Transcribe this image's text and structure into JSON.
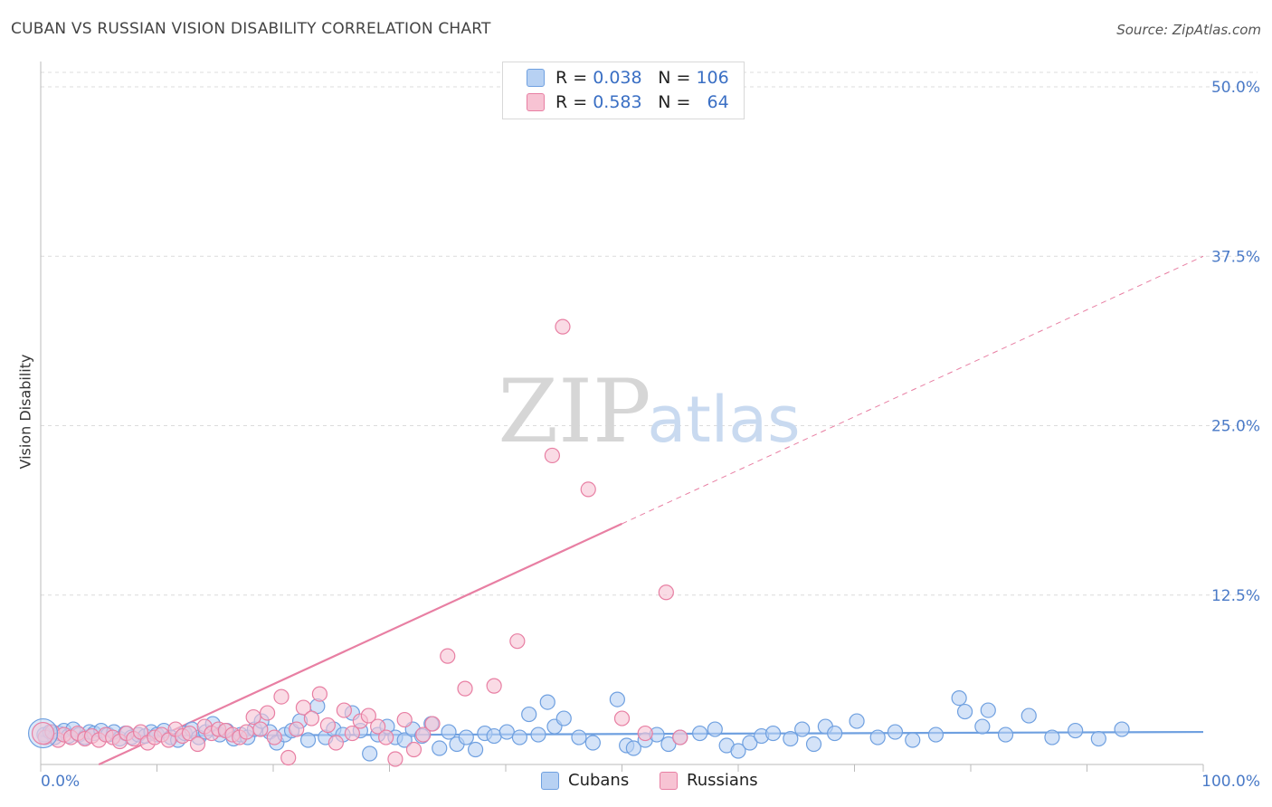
{
  "title": "CUBAN VS RUSSIAN VISION DISABILITY CORRELATION CHART",
  "source": "Source: ZipAtlas.com",
  "watermark": {
    "zip": "ZIP",
    "atlas": "atlas"
  },
  "legend": {
    "rows": [
      {
        "r_label": "R =",
        "r_value": "0.038",
        "n_label": "N =",
        "n_value": "106",
        "color": "#a8c8f0"
      },
      {
        "r_label": "R =",
        "r_value": "0.583",
        "n_label": "N =",
        "n_value": "64",
        "color": "#f7b8cb"
      }
    ]
  },
  "bottom_legend": {
    "cubans": "Cubans",
    "russians": "Russians"
  },
  "chart_data": {
    "type": "scatter",
    "title": "CUBAN VS RUSSIAN VISION DISABILITY CORRELATION CHART",
    "xlabel": "",
    "ylabel": "Vision Disability",
    "xlim": [
      0,
      100
    ],
    "ylim": [
      0,
      50
    ],
    "x_tick_labels": [
      "0.0%",
      "100.0%"
    ],
    "y_ticks": [
      12.5,
      25.0,
      37.5,
      50.0
    ],
    "y_tick_labels": [
      "12.5%",
      "25.0%",
      "37.5%",
      "50.0%"
    ],
    "series": [
      {
        "name": "Cubans",
        "color": "#6fa0e0",
        "fill": "#b7d1f3",
        "trend": {
          "x0": 0,
          "y0": 2.1,
          "x1": 100,
          "y1": 2.4,
          "dashed_from": null
        },
        "points": [
          [
            0.3,
            2.2
          ],
          [
            0.8,
            2.4
          ],
          [
            1.2,
            2.0
          ],
          [
            1.6,
            2.3
          ],
          [
            2.0,
            2.5
          ],
          [
            2.4,
            2.1
          ],
          [
            2.8,
            2.6
          ],
          [
            3.3,
            2.2
          ],
          [
            3.8,
            2.0
          ],
          [
            4.2,
            2.4
          ],
          [
            4.6,
            2.3
          ],
          [
            5.2,
            2.5
          ],
          [
            5.8,
            2.2
          ],
          [
            6.3,
            2.4
          ],
          [
            6.8,
            1.9
          ],
          [
            7.3,
            2.3
          ],
          [
            7.8,
            2.0
          ],
          [
            8.4,
            2.2
          ],
          [
            9.0,
            2.1
          ],
          [
            9.5,
            2.4
          ],
          [
            10.0,
            2.2
          ],
          [
            10.6,
            2.5
          ],
          [
            11.2,
            2.0
          ],
          [
            11.8,
            1.8
          ],
          [
            12.4,
            2.3
          ],
          [
            13.0,
            2.6
          ],
          [
            13.6,
            2.0
          ],
          [
            14.2,
            2.4
          ],
          [
            14.8,
            3.0
          ],
          [
            15.4,
            2.2
          ],
          [
            16.0,
            2.5
          ],
          [
            16.6,
            1.9
          ],
          [
            17.2,
            2.2
          ],
          [
            17.8,
            2.0
          ],
          [
            18.4,
            2.6
          ],
          [
            19.0,
            3.2
          ],
          [
            19.7,
            2.4
          ],
          [
            20.3,
            1.6
          ],
          [
            21.0,
            2.2
          ],
          [
            21.6,
            2.5
          ],
          [
            22.3,
            3.2
          ],
          [
            23.0,
            1.8
          ],
          [
            23.8,
            4.3
          ],
          [
            24.5,
            2.0
          ],
          [
            25.2,
            2.6
          ],
          [
            26.0,
            2.2
          ],
          [
            26.8,
            3.8
          ],
          [
            27.5,
            2.5
          ],
          [
            28.3,
            0.8
          ],
          [
            29.0,
            2.2
          ],
          [
            29.8,
            2.8
          ],
          [
            30.5,
            2.0
          ],
          [
            31.3,
            1.8
          ],
          [
            32.0,
            2.6
          ],
          [
            32.8,
            2.1
          ],
          [
            33.6,
            3.0
          ],
          [
            34.3,
            1.2
          ],
          [
            35.1,
            2.4
          ],
          [
            35.8,
            1.5
          ],
          [
            36.6,
            2.0
          ],
          [
            37.4,
            1.1
          ],
          [
            38.2,
            2.3
          ],
          [
            39.0,
            2.1
          ],
          [
            40.1,
            2.4
          ],
          [
            41.2,
            2.0
          ],
          [
            42.0,
            3.7
          ],
          [
            42.8,
            2.2
          ],
          [
            43.6,
            4.6
          ],
          [
            44.2,
            2.8
          ],
          [
            45.0,
            3.4
          ],
          [
            46.3,
            2.0
          ],
          [
            47.5,
            1.6
          ],
          [
            49.6,
            4.8
          ],
          [
            50.4,
            1.4
          ],
          [
            51.0,
            1.2
          ],
          [
            52.0,
            1.8
          ],
          [
            53.0,
            2.2
          ],
          [
            54.0,
            1.5
          ],
          [
            55.0,
            2.0
          ],
          [
            56.7,
            2.3
          ],
          [
            58.0,
            2.6
          ],
          [
            59.0,
            1.4
          ],
          [
            60.0,
            1.0
          ],
          [
            61.0,
            1.6
          ],
          [
            62.0,
            2.1
          ],
          [
            63.0,
            2.3
          ],
          [
            64.5,
            1.9
          ],
          [
            65.5,
            2.6
          ],
          [
            66.5,
            1.5
          ],
          [
            67.5,
            2.8
          ],
          [
            68.3,
            2.3
          ],
          [
            70.2,
            3.2
          ],
          [
            72.0,
            2.0
          ],
          [
            73.5,
            2.4
          ],
          [
            75.0,
            1.8
          ],
          [
            77.0,
            2.2
          ],
          [
            79.0,
            4.9
          ],
          [
            79.5,
            3.9
          ],
          [
            81.0,
            2.8
          ],
          [
            81.5,
            4.0
          ],
          [
            83.0,
            2.2
          ],
          [
            85.0,
            3.6
          ],
          [
            87.0,
            2.0
          ],
          [
            89.0,
            2.5
          ],
          [
            91.0,
            1.9
          ],
          [
            93.0,
            2.6
          ]
        ]
      },
      {
        "name": "Russians",
        "color": "#e87fa3",
        "fill": "#f7c3d3",
        "trend": {
          "x0": 5,
          "y0": 0,
          "x1": 100,
          "y1": 37.5,
          "dashed_from": 50
        },
        "points": [
          [
            0.4,
            2.0
          ],
          [
            1.0,
            2.4
          ],
          [
            1.5,
            1.8
          ],
          [
            2.0,
            2.2
          ],
          [
            2.6,
            2.0
          ],
          [
            3.2,
            2.3
          ],
          [
            3.8,
            1.9
          ],
          [
            4.4,
            2.1
          ],
          [
            5.0,
            1.8
          ],
          [
            5.6,
            2.2
          ],
          [
            6.2,
            2.0
          ],
          [
            6.8,
            1.7
          ],
          [
            7.4,
            2.3
          ],
          [
            8.0,
            1.9
          ],
          [
            8.6,
            2.4
          ],
          [
            9.2,
            1.6
          ],
          [
            9.8,
            2.0
          ],
          [
            10.4,
            2.2
          ],
          [
            11.0,
            1.8
          ],
          [
            11.6,
            2.6
          ],
          [
            12.2,
            2.1
          ],
          [
            12.8,
            2.3
          ],
          [
            13.5,
            1.5
          ],
          [
            14.1,
            2.8
          ],
          [
            14.7,
            2.3
          ],
          [
            15.3,
            2.6
          ],
          [
            15.9,
            2.5
          ],
          [
            16.5,
            2.2
          ],
          [
            17.1,
            2.0
          ],
          [
            17.7,
            2.4
          ],
          [
            18.3,
            3.5
          ],
          [
            18.9,
            2.6
          ],
          [
            19.5,
            3.8
          ],
          [
            20.1,
            2.0
          ],
          [
            20.7,
            5.0
          ],
          [
            21.3,
            0.5
          ],
          [
            22.0,
            2.6
          ],
          [
            22.6,
            4.2
          ],
          [
            23.3,
            3.4
          ],
          [
            24.0,
            5.2
          ],
          [
            24.7,
            2.9
          ],
          [
            25.4,
            1.6
          ],
          [
            26.1,
            4.0
          ],
          [
            26.8,
            2.3
          ],
          [
            27.5,
            3.2
          ],
          [
            28.2,
            3.6
          ],
          [
            29.0,
            2.8
          ],
          [
            29.7,
            2.0
          ],
          [
            30.5,
            0.4
          ],
          [
            31.3,
            3.3
          ],
          [
            32.1,
            1.1
          ],
          [
            32.9,
            2.2
          ],
          [
            33.7,
            3.0
          ],
          [
            35.0,
            8.0
          ],
          [
            36.5,
            5.6
          ],
          [
            39.0,
            5.8
          ],
          [
            41.0,
            9.1
          ],
          [
            44.0,
            22.8
          ],
          [
            44.9,
            32.3
          ],
          [
            47.1,
            20.3
          ],
          [
            50.0,
            3.4
          ],
          [
            52.0,
            2.3
          ],
          [
            53.8,
            12.7
          ],
          [
            55.0,
            2.0
          ]
        ]
      }
    ]
  }
}
